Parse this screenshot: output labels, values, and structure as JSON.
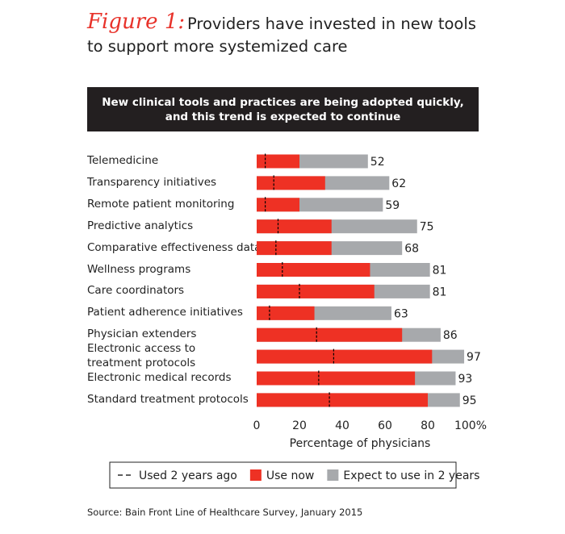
{
  "chart_data": {
    "type": "bar",
    "orientation": "horizontal",
    "figure_label": "Figure 1:",
    "title": "Providers have invested in new tools\nto support more systemized care",
    "subtitle": "New clinical tools and practices are being adopted quickly,\nand this trend is expected to continue",
    "categories": [
      "Telemedicine",
      "Transparency initiatives",
      "Remote patient monitoring",
      "Predictive analytics",
      "Comparative effectiveness data",
      "Wellness programs",
      "Care coordinators",
      "Patient adherence initiatives",
      "Physician extenders",
      "Electronic access to\ntreatment protocols",
      "Electronic medical records",
      "Standard treatment protocols"
    ],
    "series": [
      {
        "name": "Expect to use in 2 years",
        "color": "#a7a9ac",
        "mark": "bar",
        "values": [
          52,
          62,
          59,
          75,
          68,
          81,
          81,
          63,
          86,
          97,
          93,
          95
        ]
      },
      {
        "name": "Use now",
        "color": "#ee3124",
        "mark": "bar",
        "values": [
          20,
          32,
          20,
          35,
          35,
          53,
          55,
          27,
          68,
          82,
          74,
          80
        ]
      },
      {
        "name": "Used 2 years ago",
        "color": "#000000",
        "mark": "dash",
        "values": [
          4,
          8,
          4,
          10,
          9,
          12,
          20,
          6,
          28,
          36,
          29,
          34
        ]
      }
    ],
    "legend_order": [
      2,
      1,
      0
    ],
    "xlabel": "Percentage of physicians",
    "xlim": [
      0,
      100
    ],
    "xticks": [
      0,
      20,
      40,
      60,
      80,
      {
        "value": 100,
        "label": "100%"
      }
    ],
    "grid": false,
    "source": "Source: Bain Front Line of Healthcare Survey, January 2015"
  }
}
